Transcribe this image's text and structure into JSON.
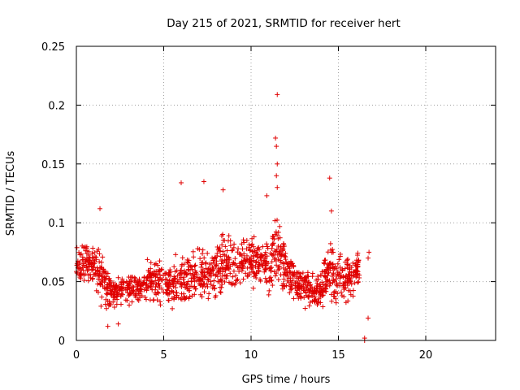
{
  "chart_data": {
    "type": "scatter",
    "title": "Day 215 of 2021, SRMTID for receiver hert",
    "xlabel": "GPS time / hours",
    "ylabel": "SRMTID / TECUs",
    "xlim": [
      0,
      24
    ],
    "ylim": [
      0,
      0.25
    ],
    "x_ticks": [
      "0",
      "5",
      "10",
      "15",
      "20"
    ],
    "y_ticks": [
      "0",
      "0.05",
      "0.1",
      "0.15",
      "0.2",
      "0.25"
    ],
    "grid": true,
    "marker": "+",
    "series_color": "#e00000",
    "envelope_approx": {
      "x": [
        0,
        0.5,
        1,
        1.5,
        2,
        2.5,
        3,
        3.5,
        4,
        4.5,
        5,
        5.5,
        6,
        6.5,
        7,
        7.5,
        8,
        8.5,
        9,
        9.5,
        10,
        10.5,
        11,
        11.5,
        12,
        12.5,
        13,
        13.5,
        14,
        14.5,
        15,
        15.5,
        16,
        16.5
      ],
      "center": [
        0.06,
        0.065,
        0.065,
        0.055,
        0.04,
        0.042,
        0.045,
        0.045,
        0.05,
        0.052,
        0.045,
        0.048,
        0.055,
        0.052,
        0.055,
        0.058,
        0.062,
        0.068,
        0.065,
        0.07,
        0.068,
        0.062,
        0.066,
        0.07,
        0.06,
        0.05,
        0.045,
        0.042,
        0.042,
        0.06,
        0.055,
        0.05,
        0.06,
        0.07
      ],
      "spread": [
        0.02,
        0.02,
        0.025,
        0.03,
        0.015,
        0.015,
        0.015,
        0.015,
        0.02,
        0.022,
        0.02,
        0.022,
        0.03,
        0.025,
        0.03,
        0.03,
        0.03,
        0.035,
        0.025,
        0.025,
        0.025,
        0.025,
        0.035,
        0.035,
        0.025,
        0.02,
        0.018,
        0.02,
        0.02,
        0.03,
        0.025,
        0.025,
        0.028,
        0.005
      ]
    },
    "notable_points": [
      {
        "x": 11.5,
        "y": 0.209
      },
      {
        "x": 11.4,
        "y": 0.172
      },
      {
        "x": 11.45,
        "y": 0.165
      },
      {
        "x": 11.5,
        "y": 0.15
      },
      {
        "x": 11.45,
        "y": 0.14
      },
      {
        "x": 11.5,
        "y": 0.13
      },
      {
        "x": 14.5,
        "y": 0.138
      },
      {
        "x": 6,
        "y": 0.134
      },
      {
        "x": 7.3,
        "y": 0.135
      },
      {
        "x": 8.4,
        "y": 0.128
      },
      {
        "x": 1.35,
        "y": 0.112
      },
      {
        "x": 14.6,
        "y": 0.11
      },
      {
        "x": 10.9,
        "y": 0.123
      },
      {
        "x": 1.8,
        "y": 0.012
      },
      {
        "x": 2.4,
        "y": 0.014
      },
      {
        "x": 16.7,
        "y": 0.019
      },
      {
        "x": 16.5,
        "y": 0.0
      },
      {
        "x": 16.5,
        "y": 0.002
      },
      {
        "x": 16.7,
        "y": 0.07
      },
      {
        "x": 16.75,
        "y": 0.075
      }
    ]
  }
}
